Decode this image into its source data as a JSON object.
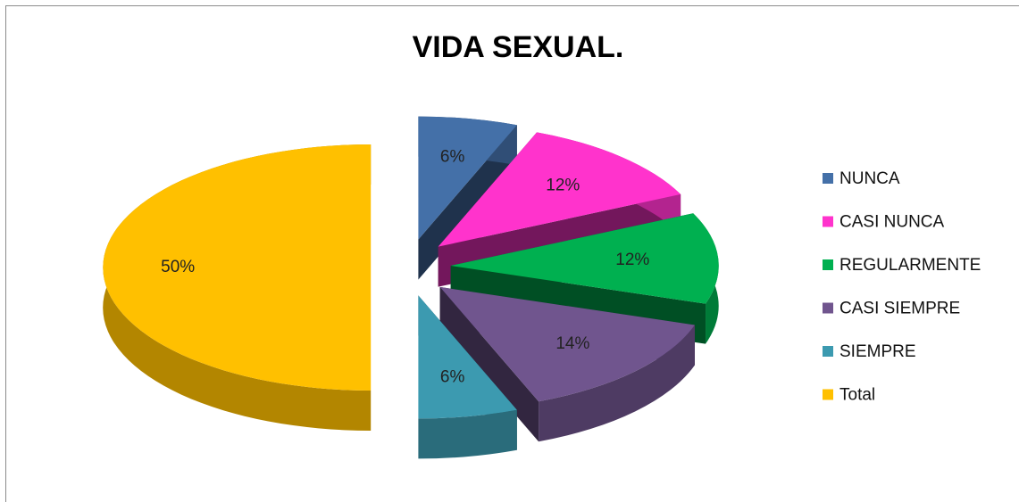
{
  "chart_data": {
    "type": "pie",
    "title": "VIDA SEXUAL.",
    "categories": [
      "NUNCA",
      "CASI NUNCA",
      "REGULARMENTE",
      "CASI SIEMPRE",
      "SIEMPRE",
      "Total"
    ],
    "values": [
      6,
      12,
      12,
      14,
      6,
      50
    ],
    "value_labels": [
      "6%",
      "12%",
      "12%",
      "14%",
      "6%",
      "50%"
    ],
    "colors": [
      "#4470a8",
      "#ff33cc",
      "#00b050",
      "#70558e",
      "#3c9ab0",
      "#ffc000"
    ],
    "legend": "right"
  }
}
